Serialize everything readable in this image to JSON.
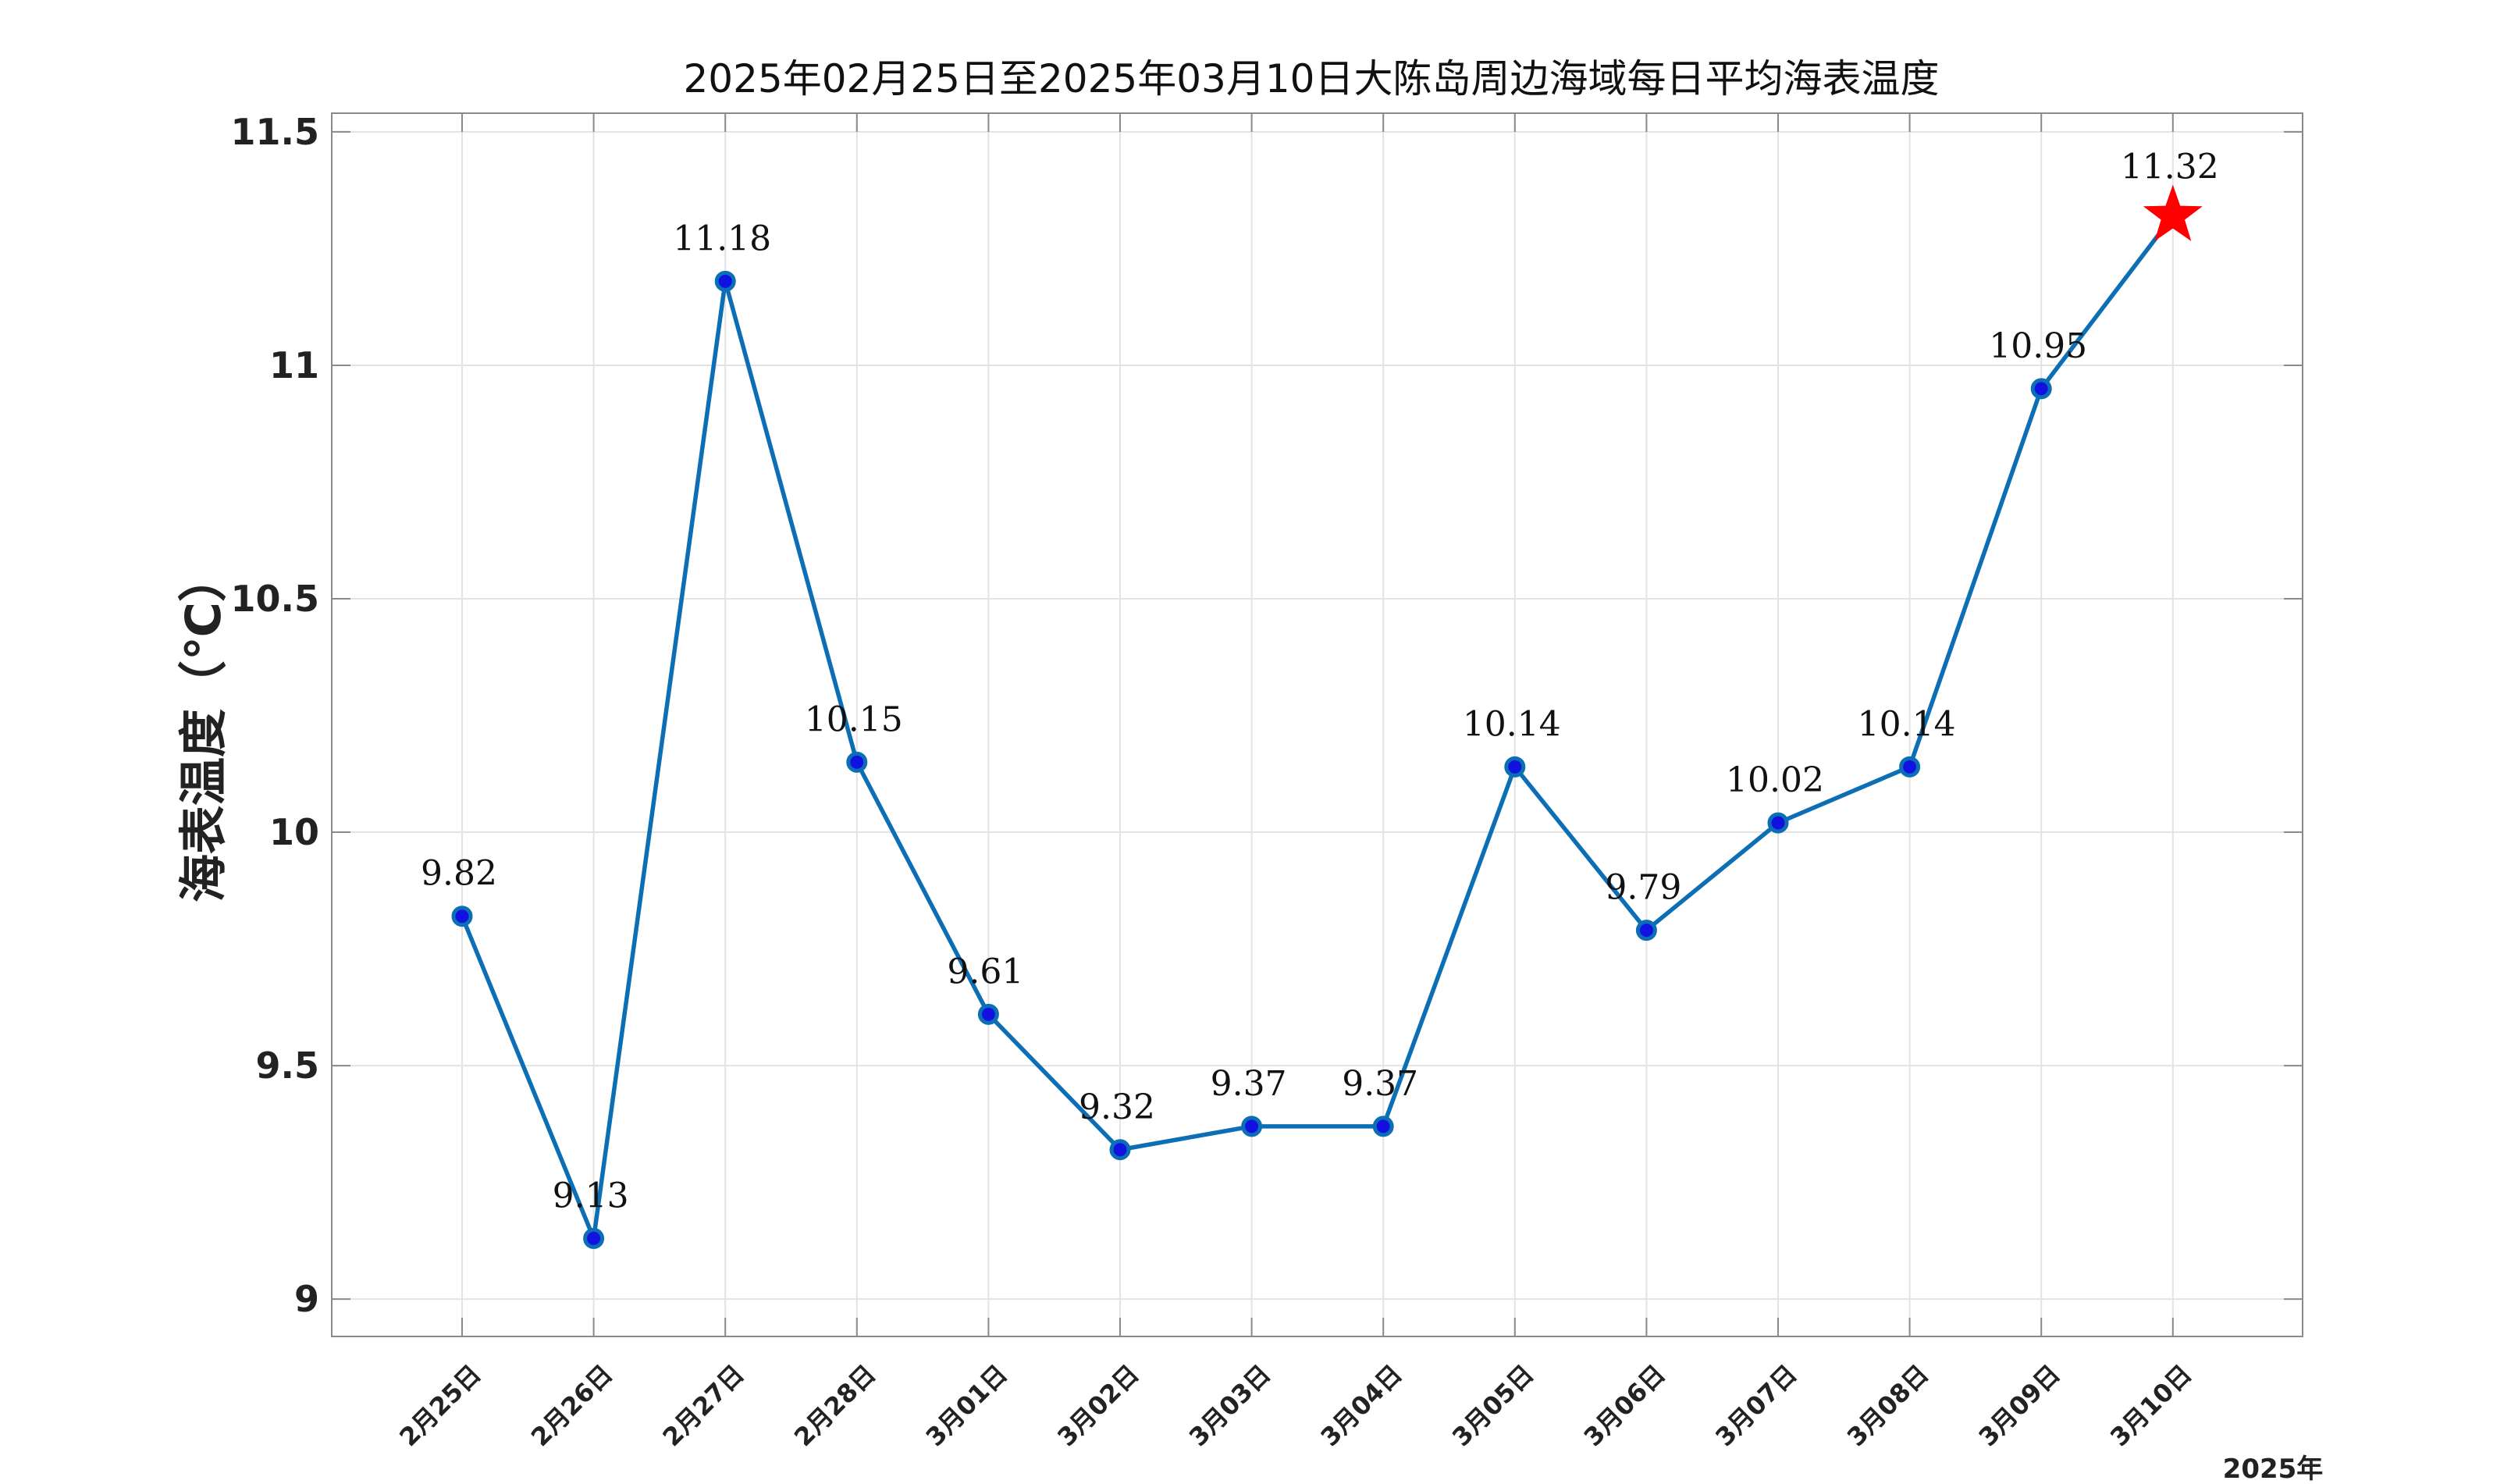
{
  "chart_data": {
    "type": "line",
    "title": "2025年02月25日至2025年03月10日大陈岛周边海域每日平均海表温度",
    "xlabel": "",
    "ylabel": "海表温度（℃）",
    "x_unit_label": "2025年",
    "categories": [
      "2月25日",
      "2月26日",
      "2月27日",
      "2月28日",
      "3月01日",
      "3月02日",
      "3月03日",
      "3月04日",
      "3月05日",
      "3月06日",
      "3月07日",
      "3月08日",
      "3月09日",
      "3月10日"
    ],
    "series": [
      {
        "values": [
          9.82,
          9.13,
          11.18,
          10.15,
          9.61,
          9.32,
          9.37,
          9.37,
          10.14,
          9.79,
          10.02,
          10.14,
          10.95,
          11.32
        ],
        "data_labels": [
          "9.82",
          "9.13",
          "11.18",
          "10.15",
          "9.61",
          "9.32",
          "9.37",
          "9.37",
          "10.14",
          "9.79",
          "10.02",
          "10.14",
          "10.95",
          "11.32"
        ],
        "color": "#0c6fb5",
        "marker_color": "#1212e0",
        "last_point_marker": "star",
        "last_point_color": "#ff0000"
      }
    ],
    "yticks": [
      "9",
      "9.5",
      "10",
      "10.5",
      "11",
      "11.5"
    ],
    "ylim": [
      8.92,
      11.54
    ],
    "grid": true,
    "legend": "none"
  }
}
